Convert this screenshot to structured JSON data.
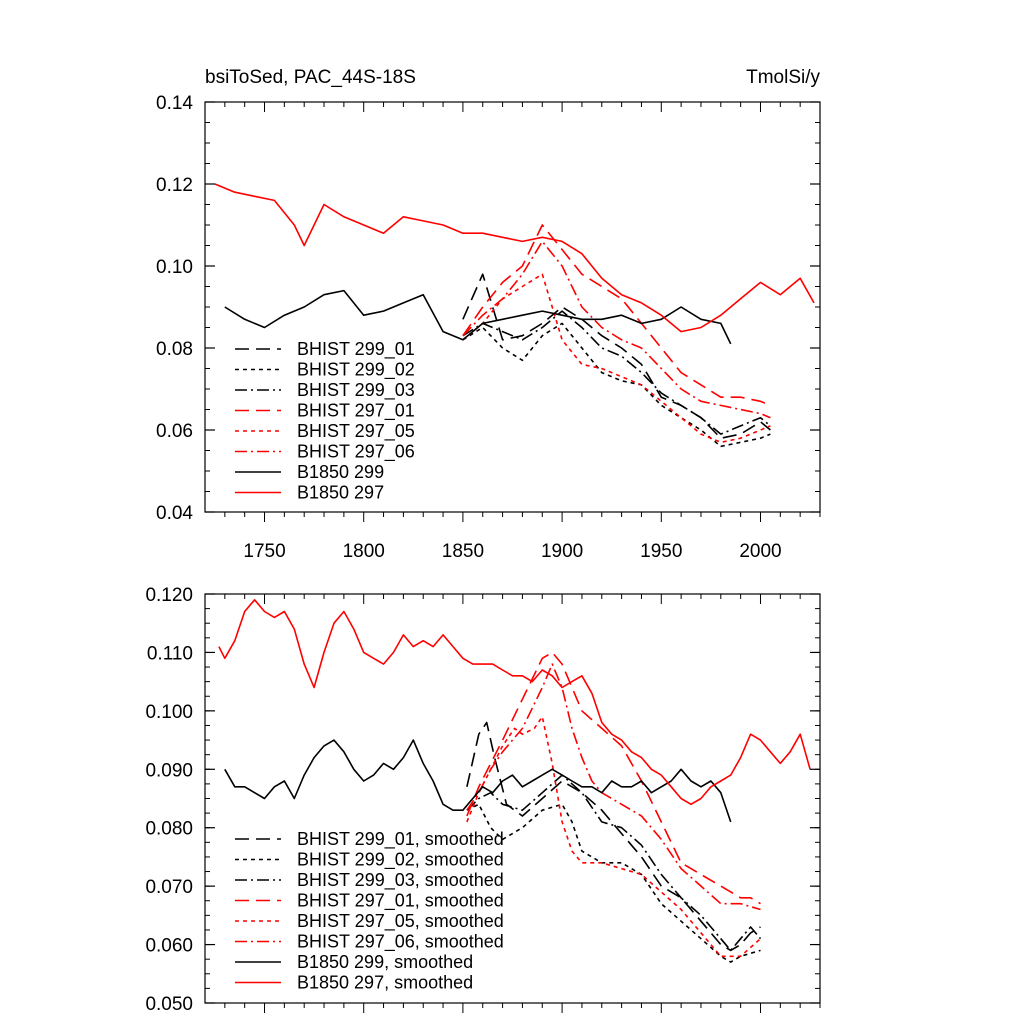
{
  "figure": {
    "title_left": "bsiToSed, PAC_44S-18S",
    "title_right": "TmolSi/y"
  },
  "chart_data": [
    {
      "type": "line",
      "xlim": [
        1720,
        2030
      ],
      "ylim": [
        0.04,
        0.14
      ],
      "x_ticks": [
        1750,
        1800,
        1850,
        1900,
        1950,
        2000
      ],
      "x_tick_labels": [
        "1750",
        "1800",
        "1850",
        "1900",
        "1950",
        "2000"
      ],
      "y_ticks": [
        0.04,
        0.06,
        0.08,
        0.1,
        0.12,
        0.14
      ],
      "y_tick_labels": [
        "0.04",
        "0.06",
        "0.08",
        "0.10",
        "0.12",
        "0.14"
      ],
      "grid": false,
      "legend_position": "bottom-left",
      "series": [
        {
          "name": "BHIST 299_01",
          "color": "#000000",
          "dash": "long-dash",
          "x": [
            1850,
            1860,
            1870,
            1880,
            1890,
            1900,
            1910,
            1920,
            1930,
            1940,
            1950,
            1960,
            1970,
            1980,
            1990,
            2000,
            2005
          ],
          "y": [
            0.087,
            0.098,
            0.082,
            0.083,
            0.086,
            0.09,
            0.087,
            0.083,
            0.08,
            0.076,
            0.068,
            0.066,
            0.063,
            0.058,
            0.059,
            0.062,
            0.06
          ]
        },
        {
          "name": "BHIST 299_02",
          "color": "#000000",
          "dash": "short-dash",
          "x": [
            1850,
            1860,
            1870,
            1880,
            1890,
            1900,
            1910,
            1920,
            1930,
            1940,
            1950,
            1960,
            1970,
            1980,
            1990,
            2000,
            2005
          ],
          "y": [
            0.082,
            0.085,
            0.08,
            0.077,
            0.083,
            0.086,
            0.08,
            0.074,
            0.072,
            0.071,
            0.066,
            0.063,
            0.06,
            0.056,
            0.057,
            0.058,
            0.059
          ]
        },
        {
          "name": "BHIST 299_03",
          "color": "#000000",
          "dash": "dash-dot",
          "x": [
            1850,
            1860,
            1870,
            1880,
            1890,
            1900,
            1910,
            1920,
            1930,
            1940,
            1950,
            1960,
            1970,
            1980,
            1990,
            2000,
            2005
          ],
          "y": [
            0.083,
            0.086,
            0.084,
            0.082,
            0.085,
            0.089,
            0.085,
            0.08,
            0.078,
            0.074,
            0.069,
            0.066,
            0.063,
            0.059,
            0.061,
            0.063,
            0.061
          ]
        },
        {
          "name": "BHIST 297_01",
          "color": "#ff0000",
          "dash": "long-dash",
          "x": [
            1850,
            1860,
            1870,
            1880,
            1890,
            1900,
            1910,
            1920,
            1930,
            1940,
            1950,
            1960,
            1970,
            1980,
            1990,
            2000,
            2005
          ],
          "y": [
            0.083,
            0.09,
            0.096,
            0.1,
            0.11,
            0.104,
            0.098,
            0.095,
            0.092,
            0.086,
            0.08,
            0.074,
            0.071,
            0.068,
            0.068,
            0.067,
            0.066
          ]
        },
        {
          "name": "BHIST 297_05",
          "color": "#ff0000",
          "dash": "short-dash",
          "x": [
            1850,
            1860,
            1870,
            1880,
            1890,
            1900,
            1910,
            1920,
            1930,
            1940,
            1950,
            1960,
            1970,
            1980,
            1990,
            2000,
            2005
          ],
          "y": [
            0.082,
            0.086,
            0.092,
            0.095,
            0.098,
            0.082,
            0.076,
            0.075,
            0.073,
            0.071,
            0.067,
            0.063,
            0.059,
            0.057,
            0.058,
            0.06,
            0.061
          ]
        },
        {
          "name": "BHIST 297_06",
          "color": "#ff0000",
          "dash": "dash-dot",
          "x": [
            1850,
            1860,
            1870,
            1880,
            1890,
            1900,
            1910,
            1920,
            1930,
            1940,
            1950,
            1960,
            1970,
            1980,
            1990,
            2000,
            2005
          ],
          "y": [
            0.083,
            0.088,
            0.092,
            0.098,
            0.106,
            0.1,
            0.09,
            0.085,
            0.082,
            0.08,
            0.075,
            0.07,
            0.067,
            0.066,
            0.065,
            0.064,
            0.063
          ]
        },
        {
          "name": "B1850 299",
          "color": "#000000",
          "dash": "solid",
          "x": [
            1730,
            1740,
            1750,
            1760,
            1770,
            1780,
            1790,
            1800,
            1810,
            1820,
            1830,
            1840,
            1850,
            1860,
            1870,
            1880,
            1890,
            1900,
            1910,
            1920,
            1930,
            1940,
            1950,
            1960,
            1970,
            1980,
            1985
          ],
          "y": [
            0.09,
            0.087,
            0.085,
            0.088,
            0.09,
            0.093,
            0.094,
            0.088,
            0.089,
            0.091,
            0.093,
            0.084,
            0.082,
            0.086,
            0.087,
            0.088,
            0.089,
            0.088,
            0.087,
            0.087,
            0.088,
            0.086,
            0.087,
            0.09,
            0.087,
            0.086,
            0.081
          ]
        },
        {
          "name": "B1850 297",
          "color": "#ff0000",
          "dash": "solid",
          "x": [
            1725,
            1735,
            1745,
            1755,
            1765,
            1770,
            1780,
            1790,
            1800,
            1810,
            1820,
            1830,
            1840,
            1850,
            1860,
            1870,
            1880,
            1890,
            1900,
            1910,
            1920,
            1930,
            1940,
            1950,
            1960,
            1970,
            1980,
            1990,
            2000,
            2010,
            2020,
            2027
          ],
          "y": [
            0.12,
            0.118,
            0.117,
            0.116,
            0.11,
            0.105,
            0.115,
            0.112,
            0.11,
            0.108,
            0.112,
            0.111,
            0.11,
            0.108,
            0.108,
            0.107,
            0.106,
            0.107,
            0.106,
            0.103,
            0.097,
            0.093,
            0.091,
            0.088,
            0.084,
            0.085,
            0.088,
            0.092,
            0.096,
            0.093,
            0.097,
            0.091
          ]
        }
      ]
    },
    {
      "type": "line",
      "xlim": [
        1720,
        2030
      ],
      "ylim": [
        0.05,
        0.12
      ],
      "y_ticks": [
        0.05,
        0.06,
        0.07,
        0.08,
        0.09,
        0.1,
        0.11,
        0.12
      ],
      "y_tick_labels": [
        "0.050",
        "0.060",
        "0.070",
        "0.080",
        "0.090",
        "0.100",
        "0.110",
        "0.120"
      ],
      "x_ticks": [
        1750,
        1800,
        1850,
        1900,
        1950,
        2000
      ],
      "grid": false,
      "legend_position": "bottom-left",
      "series": [
        {
          "name": "BHIST 299_01, smoothed",
          "color": "#000000",
          "dash": "long-dash",
          "x": [
            1852,
            1858,
            1862,
            1866,
            1872,
            1880,
            1890,
            1900,
            1910,
            1920,
            1930,
            1940,
            1950,
            1960,
            1970,
            1980,
            1985,
            1990,
            1995,
            2000
          ],
          "y": [
            0.087,
            0.096,
            0.098,
            0.092,
            0.084,
            0.082,
            0.085,
            0.088,
            0.086,
            0.083,
            0.079,
            0.075,
            0.07,
            0.068,
            0.064,
            0.06,
            0.059,
            0.06,
            0.062,
            0.063
          ]
        },
        {
          "name": "BHIST 299_02, smoothed",
          "color": "#000000",
          "dash": "short-dash",
          "x": [
            1852,
            1858,
            1864,
            1870,
            1880,
            1890,
            1900,
            1905,
            1910,
            1920,
            1930,
            1940,
            1950,
            1960,
            1970,
            1980,
            1985,
            1990,
            2000
          ],
          "y": [
            0.083,
            0.084,
            0.08,
            0.078,
            0.08,
            0.083,
            0.084,
            0.081,
            0.076,
            0.074,
            0.074,
            0.072,
            0.067,
            0.064,
            0.061,
            0.058,
            0.057,
            0.058,
            0.059
          ]
        },
        {
          "name": "BHIST 299_03, smoothed",
          "color": "#000000",
          "dash": "dash-dot",
          "x": [
            1852,
            1858,
            1864,
            1870,
            1880,
            1890,
            1900,
            1910,
            1920,
            1930,
            1940,
            1950,
            1960,
            1970,
            1980,
            1985,
            1990,
            1995,
            2000
          ],
          "y": [
            0.083,
            0.085,
            0.086,
            0.084,
            0.083,
            0.086,
            0.089,
            0.086,
            0.081,
            0.08,
            0.077,
            0.072,
            0.068,
            0.065,
            0.061,
            0.059,
            0.061,
            0.063,
            0.061
          ]
        },
        {
          "name": "BHIST 297_01, smoothed",
          "color": "#ff0000",
          "dash": "long-dash",
          "x": [
            1852,
            1858,
            1864,
            1870,
            1880,
            1890,
            1895,
            1900,
            1905,
            1910,
            1920,
            1930,
            1940,
            1950,
            1960,
            1970,
            1980,
            1990,
            1995,
            2000
          ],
          "y": [
            0.082,
            0.087,
            0.091,
            0.095,
            0.102,
            0.109,
            0.11,
            0.108,
            0.104,
            0.1,
            0.097,
            0.094,
            0.088,
            0.081,
            0.074,
            0.072,
            0.07,
            0.068,
            0.068,
            0.067
          ]
        },
        {
          "name": "BHIST 297_05, smoothed",
          "color": "#ff0000",
          "dash": "short-dash",
          "x": [
            1852,
            1858,
            1864,
            1870,
            1876,
            1880,
            1886,
            1890,
            1895,
            1900,
            1905,
            1910,
            1920,
            1930,
            1940,
            1950,
            1960,
            1970,
            1980,
            1990,
            2000
          ],
          "y": [
            0.081,
            0.086,
            0.09,
            0.094,
            0.097,
            0.096,
            0.097,
            0.099,
            0.091,
            0.081,
            0.076,
            0.074,
            0.074,
            0.073,
            0.072,
            0.069,
            0.066,
            0.062,
            0.058,
            0.058,
            0.061
          ]
        },
        {
          "name": "BHIST 297_06, smoothed",
          "color": "#ff0000",
          "dash": "dash-dot",
          "x": [
            1852,
            1858,
            1864,
            1870,
            1880,
            1890,
            1895,
            1900,
            1905,
            1910,
            1915,
            1920,
            1930,
            1940,
            1950,
            1960,
            1970,
            1980,
            1990,
            2000
          ],
          "y": [
            0.083,
            0.086,
            0.09,
            0.093,
            0.097,
            0.104,
            0.108,
            0.104,
            0.097,
            0.092,
            0.088,
            0.086,
            0.084,
            0.082,
            0.078,
            0.073,
            0.07,
            0.067,
            0.067,
            0.066
          ]
        },
        {
          "name": "B1850 299, smoothed",
          "color": "#000000",
          "dash": "solid",
          "x": [
            1730,
            1735,
            1740,
            1745,
            1750,
            1755,
            1760,
            1765,
            1770,
            1775,
            1780,
            1785,
            1790,
            1795,
            1800,
            1805,
            1810,
            1815,
            1820,
            1825,
            1830,
            1835,
            1840,
            1845,
            1850,
            1855,
            1860,
            1865,
            1870,
            1875,
            1880,
            1885,
            1890,
            1895,
            1900,
            1905,
            1910,
            1915,
            1920,
            1925,
            1930,
            1935,
            1940,
            1945,
            1950,
            1955,
            1960,
            1965,
            1970,
            1975,
            1980,
            1985
          ],
          "y": [
            0.09,
            0.087,
            0.087,
            0.086,
            0.085,
            0.087,
            0.088,
            0.085,
            0.089,
            0.092,
            0.094,
            0.095,
            0.093,
            0.09,
            0.088,
            0.089,
            0.091,
            0.09,
            0.092,
            0.095,
            0.091,
            0.088,
            0.084,
            0.083,
            0.083,
            0.085,
            0.087,
            0.086,
            0.088,
            0.089,
            0.087,
            0.088,
            0.089,
            0.09,
            0.089,
            0.088,
            0.087,
            0.087,
            0.086,
            0.088,
            0.087,
            0.087,
            0.088,
            0.086,
            0.087,
            0.088,
            0.09,
            0.088,
            0.087,
            0.088,
            0.086,
            0.081
          ]
        },
        {
          "name": "B1850 297, smoothed",
          "color": "#ff0000",
          "dash": "solid",
          "x": [
            1727,
            1730,
            1735,
            1740,
            1745,
            1750,
            1755,
            1760,
            1765,
            1770,
            1775,
            1780,
            1785,
            1790,
            1795,
            1800,
            1805,
            1810,
            1815,
            1820,
            1825,
            1830,
            1835,
            1840,
            1845,
            1850,
            1855,
            1860,
            1865,
            1870,
            1875,
            1880,
            1885,
            1890,
            1895,
            1900,
            1905,
            1910,
            1915,
            1920,
            1925,
            1930,
            1935,
            1940,
            1945,
            1950,
            1955,
            1960,
            1965,
            1970,
            1975,
            1980,
            1985,
            1990,
            1995,
            2000,
            2005,
            2010,
            2015,
            2020,
            2025
          ],
          "y": [
            0.111,
            0.109,
            0.112,
            0.117,
            0.119,
            0.117,
            0.116,
            0.117,
            0.114,
            0.108,
            0.104,
            0.11,
            0.115,
            0.117,
            0.114,
            0.11,
            0.109,
            0.108,
            0.11,
            0.113,
            0.111,
            0.112,
            0.111,
            0.113,
            0.111,
            0.109,
            0.108,
            0.108,
            0.108,
            0.107,
            0.106,
            0.106,
            0.105,
            0.107,
            0.106,
            0.104,
            0.105,
            0.106,
            0.103,
            0.098,
            0.096,
            0.095,
            0.093,
            0.092,
            0.09,
            0.089,
            0.087,
            0.085,
            0.084,
            0.085,
            0.087,
            0.088,
            0.089,
            0.092,
            0.096,
            0.095,
            0.093,
            0.091,
            0.093,
            0.096,
            0.09
          ]
        }
      ]
    }
  ]
}
